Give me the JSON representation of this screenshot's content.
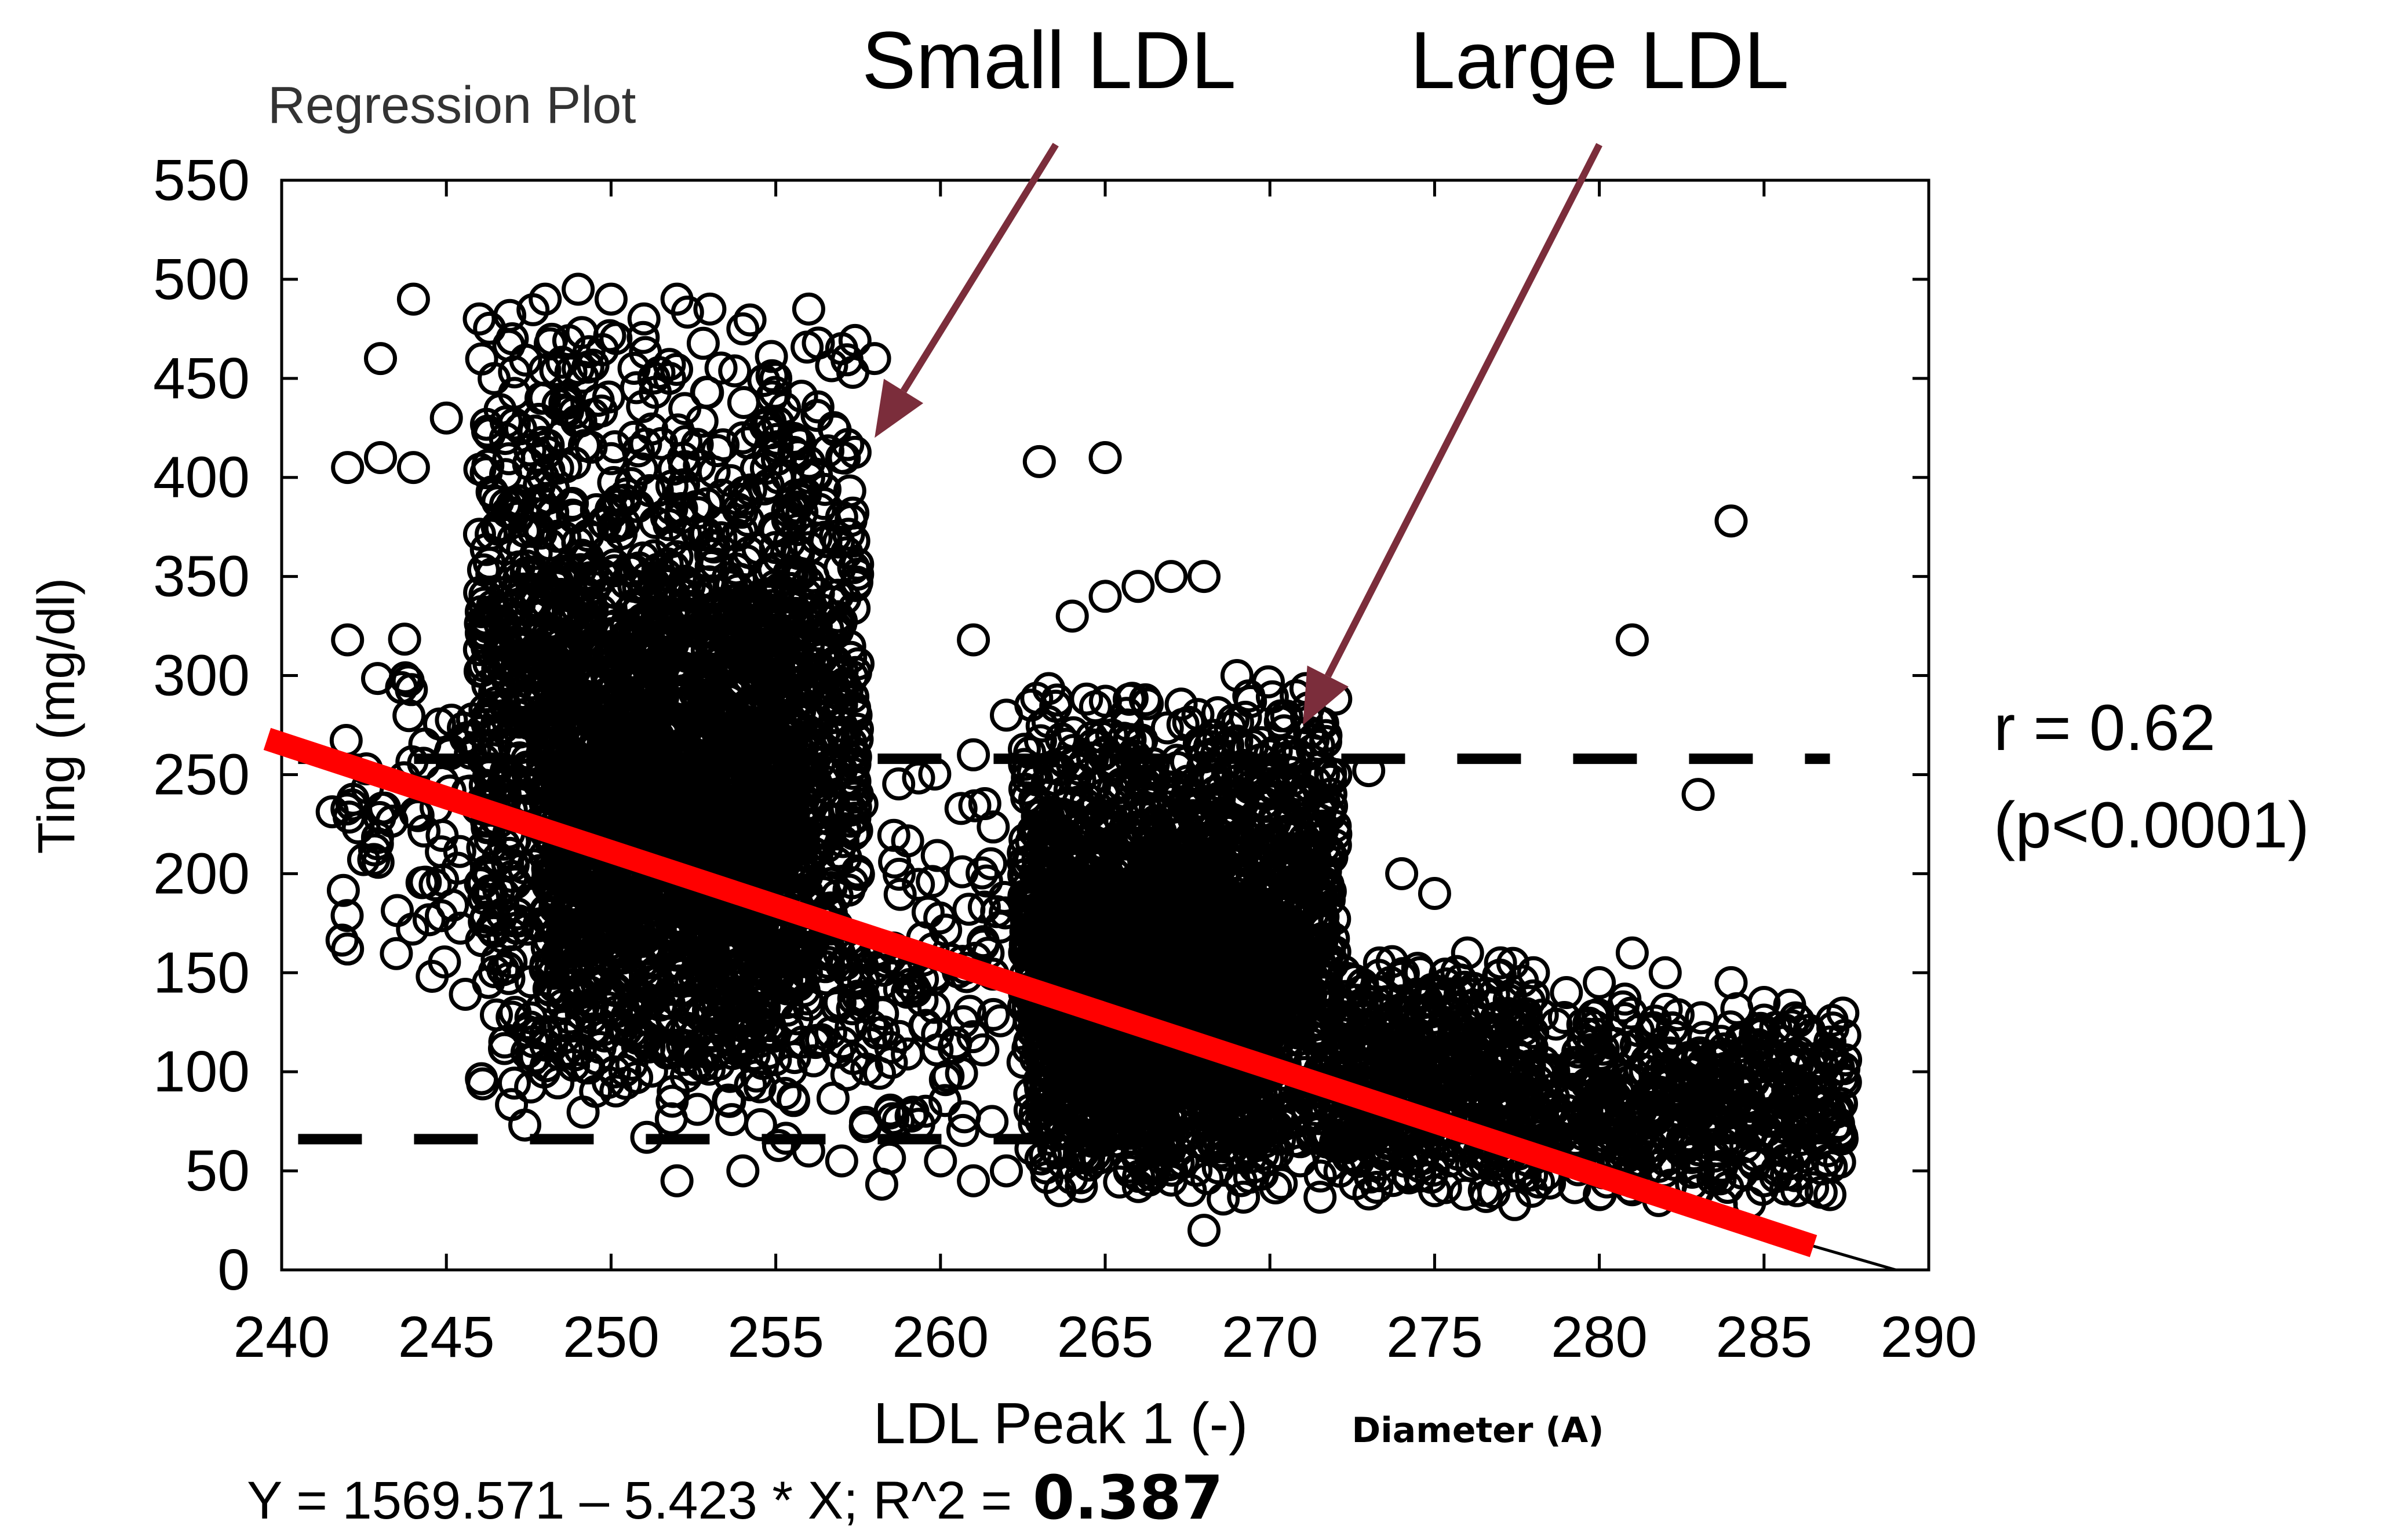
{
  "chart_data": {
    "type": "scatter",
    "title": "Regression Plot",
    "xlabel": "LDL Peak 1 (-)",
    "xlabel_unit": "Diameter (A)",
    "ylabel": "Ting (mg/dl)",
    "xlim": [
      240,
      290
    ],
    "ylim": [
      0,
      550
    ],
    "x_ticks": [
      "240",
      "245",
      "250",
      "255",
      "260",
      "265",
      "270",
      "275",
      "280",
      "285",
      "290"
    ],
    "y_ticks": [
      "0",
      "50",
      "100",
      "150",
      "200",
      "250",
      "300",
      "350",
      "400",
      "450",
      "500",
      "550"
    ],
    "grid": false,
    "regression": {
      "intercept": 1569.571,
      "slope": -5.423,
      "r_squared_label": "0.387",
      "equation_text": "Y = 1569.571 – 5.423 * X; R^2 = ",
      "line_from": [
        240,
        268
      ],
      "line_to": [
        286.5,
        12
      ],
      "color": "#ff0000",
      "thin_line_from": [
        286.5,
        12
      ],
      "thin_line_to": [
        289,
        0
      ]
    },
    "reference_lines": [
      {
        "name": "upper-bound",
        "y": 258,
        "style": "dashed"
      },
      {
        "name": "lower-bound",
        "y": 66,
        "style": "dashed"
      }
    ],
    "annotations": [
      {
        "id": "small-ldl",
        "text": "Small LDL",
        "arrow_to": [
          258,
          420
        ],
        "arrow_from": [
          263.5,
          568
        ]
      },
      {
        "id": "large-ldl",
        "text": "Large LDL",
        "arrow_to": [
          271,
          275
        ],
        "arrow_from": [
          280,
          568
        ]
      }
    ],
    "arrow_color": "#7b2d3b",
    "stats": {
      "r_text": "r = 0.62",
      "p_text": "(p<0.0001)"
    },
    "point_clusters": [
      {
        "x": [
          246,
          257.5
        ],
        "y": [
          55,
          490
        ],
        "n": 1700
      },
      {
        "x": [
          248,
          256
        ],
        "y": [
          80,
          360
        ],
        "n": 1100
      },
      {
        "x": [
          241.5,
          246
        ],
        "y": [
          130,
          330
        ],
        "n": 70
      },
      {
        "x": [
          257.5,
          262
        ],
        "y": [
          40,
          260
        ],
        "n": 110
      },
      {
        "x": [
          262.5,
          272
        ],
        "y": [
          30,
          300
        ],
        "n": 1700
      },
      {
        "x": [
          263,
          270
        ],
        "y": [
          40,
          220
        ],
        "n": 900
      },
      {
        "x": [
          272,
          278
        ],
        "y": [
          30,
          160
        ],
        "n": 500
      },
      {
        "x": [
          278,
          287.5
        ],
        "y": [
          30,
          140
        ],
        "n": 480
      }
    ],
    "points": [
      [
        242,
        405
      ],
      [
        243,
        410
      ],
      [
        244,
        405
      ],
      [
        242,
        318
      ],
      [
        242,
        162
      ],
      [
        243,
        460
      ],
      [
        244,
        490
      ],
      [
        245,
        430
      ],
      [
        246,
        480
      ],
      [
        247,
        470
      ],
      [
        248,
        490
      ],
      [
        249,
        495
      ],
      [
        250,
        490
      ],
      [
        251,
        480
      ],
      [
        252,
        490
      ],
      [
        253,
        485
      ],
      [
        254,
        475
      ],
      [
        255,
        450
      ],
      [
        256,
        485
      ],
      [
        257,
        465
      ],
      [
        258,
        460
      ],
      [
        257,
        410
      ],
      [
        256,
        400
      ],
      [
        257,
        380
      ],
      [
        249,
        455
      ],
      [
        252,
        360
      ],
      [
        254,
        420
      ],
      [
        261,
        318
      ],
      [
        261,
        260
      ],
      [
        262,
        280
      ],
      [
        263,
        408
      ],
      [
        264,
        330
      ],
      [
        265,
        410
      ],
      [
        265,
        340
      ],
      [
        266,
        345
      ],
      [
        267,
        350
      ],
      [
        268,
        350
      ],
      [
        269,
        300
      ],
      [
        270,
        260
      ],
      [
        271,
        240
      ],
      [
        272,
        250
      ],
      [
        273,
        252
      ],
      [
        272,
        220
      ],
      [
        274,
        200
      ],
      [
        275,
        190
      ],
      [
        276,
        160
      ],
      [
        277,
        155
      ],
      [
        278,
        150
      ],
      [
        279,
        140
      ],
      [
        280,
        145
      ],
      [
        281,
        160
      ],
      [
        282,
        150
      ],
      [
        283,
        240
      ],
      [
        284,
        145
      ],
      [
        285,
        135
      ],
      [
        286,
        70
      ],
      [
        287,
        115
      ],
      [
        287,
        110
      ],
      [
        287,
        80
      ],
      [
        281,
        318
      ],
      [
        284,
        378
      ],
      [
        252,
        45
      ],
      [
        254,
        50
      ],
      [
        256,
        60
      ],
      [
        257,
        55
      ],
      [
        260,
        55
      ],
      [
        261,
        45
      ],
      [
        262,
        50
      ],
      [
        268,
        20
      ],
      [
        275,
        40
      ],
      [
        280,
        38
      ],
      [
        283,
        40
      ],
      [
        285,
        45
      ],
      [
        286,
        40
      ],
      [
        287,
        38
      ]
    ]
  }
}
